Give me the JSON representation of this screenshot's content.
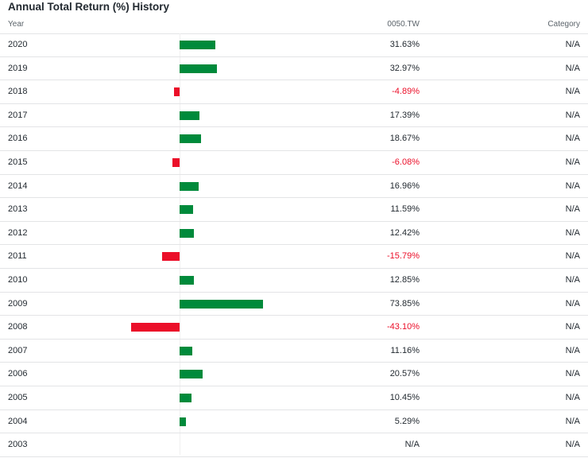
{
  "title": "Annual Total Return (%) History",
  "columns": {
    "year": "Year",
    "fund": "0050.TW",
    "category": "Category"
  },
  "chart_data": {
    "type": "bar",
    "orientation": "horizontal",
    "title": "Annual Total Return (%) History",
    "categories": [
      "2020",
      "2019",
      "2018",
      "2017",
      "2016",
      "2015",
      "2014",
      "2013",
      "2012",
      "2011",
      "2010",
      "2009",
      "2008",
      "2007",
      "2006",
      "2005",
      "2004",
      "2003"
    ],
    "series": [
      {
        "name": "0050.TW",
        "values": [
          31.63,
          32.97,
          -4.89,
          17.39,
          18.67,
          -6.08,
          16.96,
          11.59,
          12.42,
          -15.79,
          12.85,
          73.85,
          -43.1,
          11.16,
          20.57,
          10.45,
          5.29,
          null
        ]
      }
    ],
    "value_labels": [
      "31.63%",
      "32.97%",
      "-4.89%",
      "17.39%",
      "18.67%",
      "-6.08%",
      "16.96%",
      "11.59%",
      "12.42%",
      "-15.79%",
      "12.85%",
      "73.85%",
      "-43.10%",
      "11.16%",
      "20.57%",
      "10.45%",
      "5.29%",
      "N/A"
    ],
    "category_values": [
      "N/A",
      "N/A",
      "N/A",
      "N/A",
      "N/A",
      "N/A",
      "N/A",
      "N/A",
      "N/A",
      "N/A",
      "N/A",
      "N/A",
      "N/A",
      "N/A",
      "N/A",
      "N/A",
      "N/A",
      "N/A"
    ],
    "colors": {
      "positive": "#008a3b",
      "negative": "#eb0f29"
    }
  }
}
